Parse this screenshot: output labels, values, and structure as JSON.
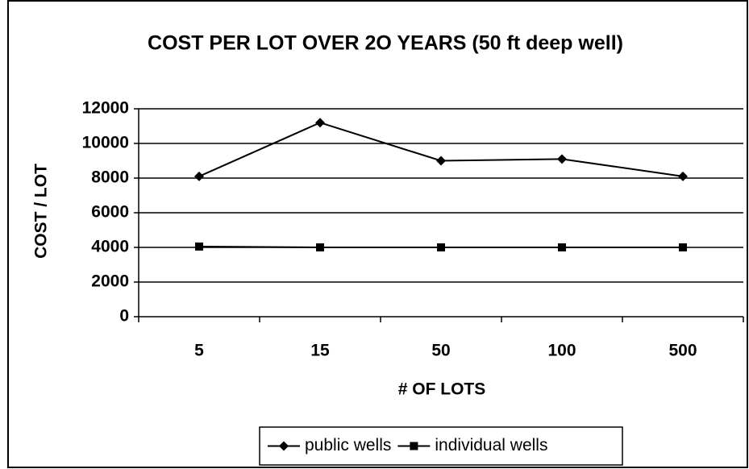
{
  "chart_data": {
    "type": "line",
    "title": "COST PER LOT OVER 2O YEARS (50 ft deep well)",
    "x_label": "# OF LOTS",
    "y_label": "COST / LOT",
    "categories": [
      "5",
      "15",
      "50",
      "100",
      "500"
    ],
    "series": [
      {
        "name": "public wells",
        "color": "#000000",
        "marker": "diamond",
        "values": [
          8100,
          11200,
          9000,
          9100,
          8100
        ]
      },
      {
        "name": "individual wells",
        "color": "#000000",
        "marker": "square",
        "values": [
          4050,
          4000,
          4000,
          4000,
          4000
        ]
      }
    ],
    "ylim": [
      0,
      12000
    ],
    "yticks": [
      0,
      2000,
      4000,
      6000,
      8000,
      10000,
      12000
    ],
    "grid": true,
    "legend": "bottom"
  }
}
